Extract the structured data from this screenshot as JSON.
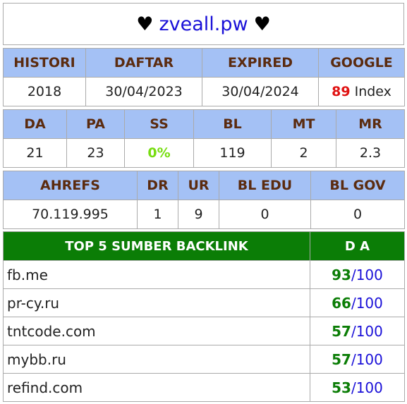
{
  "title": {
    "heart_left": "♥",
    "domain": "zveall.pw",
    "heart_right": "♥"
  },
  "table1": {
    "headers": [
      "HISTORI",
      "DAFTAR",
      "EXPIRED",
      "GOOGLE"
    ],
    "histori": "2018",
    "daftar": "30/04/2023",
    "expired": "30/04/2024",
    "google_count": "89",
    "google_suffix": "Index"
  },
  "table2": {
    "headers": [
      "DA",
      "PA",
      "SS",
      "BL",
      "MT",
      "MR"
    ],
    "values": [
      "21",
      "23",
      "0%",
      "119",
      "2",
      "2.3"
    ]
  },
  "table3": {
    "headers": [
      "AHREFS",
      "DR",
      "UR",
      "BL EDU",
      "BL GOV"
    ],
    "values": [
      "70.119.995",
      "1",
      "9",
      "0",
      "0"
    ]
  },
  "backlinks": {
    "header_source": "TOP 5 SUMBER BACKLINK",
    "header_da": "D A",
    "rows": [
      {
        "domain": "fb.me",
        "score": "93",
        "sep": "/",
        "max": "100"
      },
      {
        "domain": "pr-cy.ru",
        "score": "66",
        "sep": "/",
        "max": "100"
      },
      {
        "domain": "tntcode.com",
        "score": "57",
        "sep": "/",
        "max": "100"
      },
      {
        "domain": "mybb.ru",
        "score": "57",
        "sep": "/",
        "max": "100"
      },
      {
        "domain": "refind.com",
        "score": "53",
        "sep": "/",
        "max": "100"
      }
    ]
  }
}
